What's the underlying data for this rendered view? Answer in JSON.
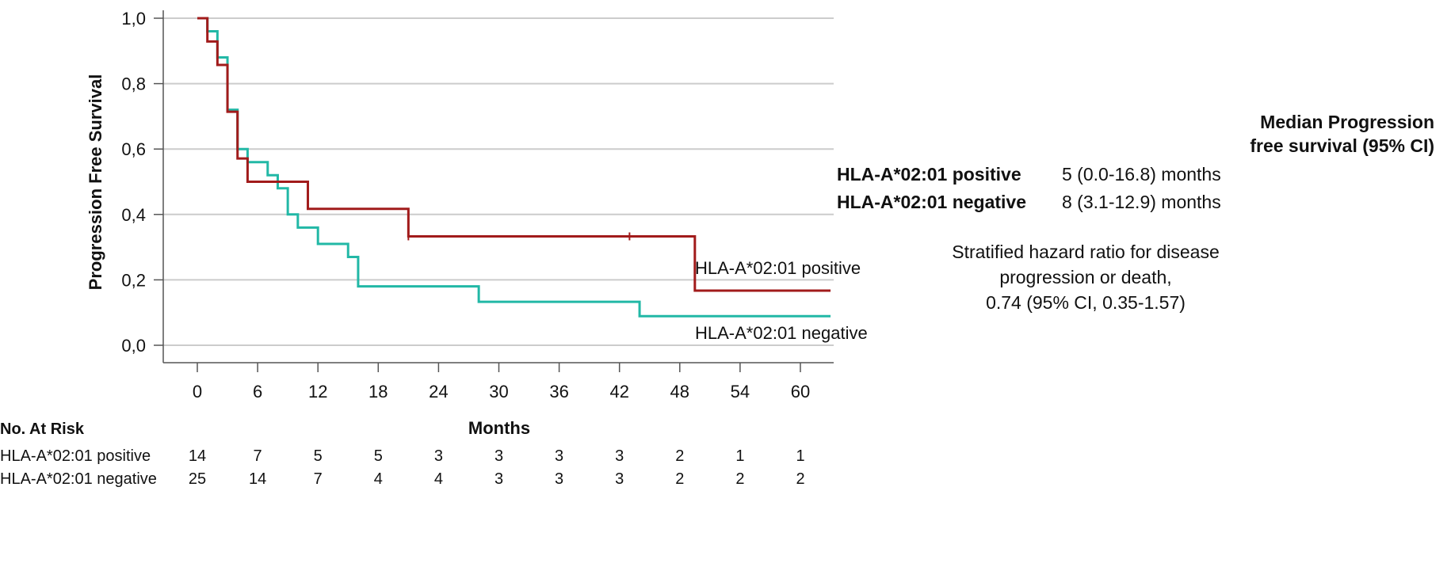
{
  "chart_data": {
    "type": "line",
    "subtype": "kaplan-meier",
    "ylabel": "Progression Free Survival",
    "xlabel": "Months",
    "ylim": [
      0,
      1
    ],
    "xlim": [
      -2,
      63
    ],
    "yticks": [
      0,
      0.2,
      0.4,
      0.6,
      0.8,
      1.0
    ],
    "ytick_labels": [
      "0,0",
      "0,2",
      "0,4",
      "0,6",
      "0,8",
      "1,0"
    ],
    "xticks": [
      0,
      6,
      12,
      18,
      24,
      30,
      36,
      42,
      48,
      54,
      60
    ],
    "xtick_labels": [
      "0",
      "6",
      "12",
      "18",
      "24",
      "30",
      "36",
      "42",
      "48",
      "54",
      "60"
    ],
    "grid": "horizontal",
    "series": [
      {
        "name": "HLA-A*02:01 positive",
        "color": "#a11b1b",
        "label": "HLA-A*02:01 positive",
        "steps": [
          [
            0,
            1.0
          ],
          [
            1,
            0.929
          ],
          [
            2,
            0.857
          ],
          [
            3,
            0.714
          ],
          [
            4,
            0.571
          ],
          [
            5,
            0.5
          ],
          [
            11,
            0.417
          ],
          [
            21,
            0.333
          ],
          [
            49.5,
            0.167
          ],
          [
            63,
            0.167
          ]
        ],
        "censored": [
          [
            21,
            0.333
          ],
          [
            43,
            0.333
          ]
        ]
      },
      {
        "name": "HLA-A*02:01 negative",
        "color": "#22b8a6",
        "label": "HLA-A*02:01 negative",
        "steps": [
          [
            0,
            1.0
          ],
          [
            1,
            0.96
          ],
          [
            2,
            0.88
          ],
          [
            3,
            0.72
          ],
          [
            4,
            0.6
          ],
          [
            5,
            0.56
          ],
          [
            7,
            0.52
          ],
          [
            8,
            0.48
          ],
          [
            9,
            0.4
          ],
          [
            10,
            0.36
          ],
          [
            12,
            0.31
          ],
          [
            15,
            0.27
          ],
          [
            16,
            0.18
          ],
          [
            28,
            0.133
          ],
          [
            44,
            0.089
          ],
          [
            63,
            0.089
          ]
        ],
        "censored": []
      }
    ]
  },
  "risk_table": {
    "title": "No. At Risk",
    "rows": [
      {
        "label": "HLA-A*02:01 positive",
        "values": [
          "14",
          "7",
          "5",
          "5",
          "3",
          "3",
          "3",
          "3",
          "2",
          "1",
          "1"
        ]
      },
      {
        "label": "HLA-A*02:01 negative",
        "values": [
          "25",
          "14",
          "7",
          "4",
          "4",
          "3",
          "3",
          "3",
          "2",
          "2",
          "2"
        ]
      }
    ]
  },
  "annotation": {
    "median_header_line1": "Median Progression",
    "median_header_line2": "free survival (95% CI)",
    "rows": [
      {
        "group": "HLA-A*02:01 positive",
        "value": "5 (0.0-16.8) months"
      },
      {
        "group": "HLA-A*02:01 negative",
        "value": "8 (3.1-12.9) months"
      }
    ],
    "hr_line1": "Stratified hazard ratio for disease",
    "hr_line2": "progression or death,",
    "hr_line3": "0.74 (95% CI, 0.35-1.57)"
  },
  "colors": {
    "positive": "#a11b1b",
    "negative": "#22b8a6",
    "grid": "#cccccc",
    "axis": "#555555"
  }
}
